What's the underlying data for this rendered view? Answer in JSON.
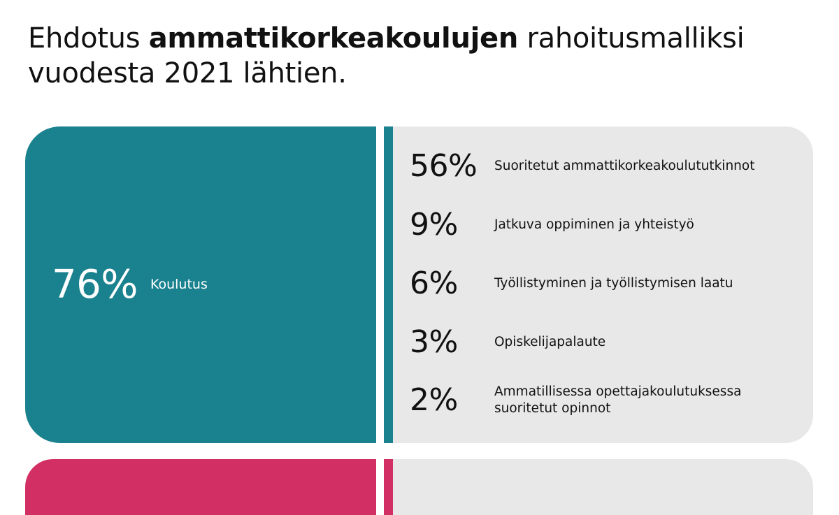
{
  "title": {
    "prefix": "Ehdotus ",
    "bold": "ammattikorkeakoulujen",
    "suffix": " rahoitusmalliksi vuodesta 2021 lähtien."
  },
  "main_share": {
    "value": "76%",
    "label": "Koulutus"
  },
  "breakdown": [
    {
      "value": "56%",
      "label": "Suoritetut ammattikorkeakoulututkinnot"
    },
    {
      "value": "9%",
      "label": "Jatkuva oppiminen ja yhteistyö"
    },
    {
      "value": "6%",
      "label": "Työllistyminen ja työllistymisen laatu"
    },
    {
      "value": "3%",
      "label": "Opiskelijapalaute"
    },
    {
      "value": "2%",
      "label": "Ammatillisessa opettajakoulutuksessa\nsuoritetut opinnot"
    }
  ],
  "colors": {
    "teal": "#1a818e",
    "pink": "#d22f64",
    "panel": "#e8e8e8"
  }
}
